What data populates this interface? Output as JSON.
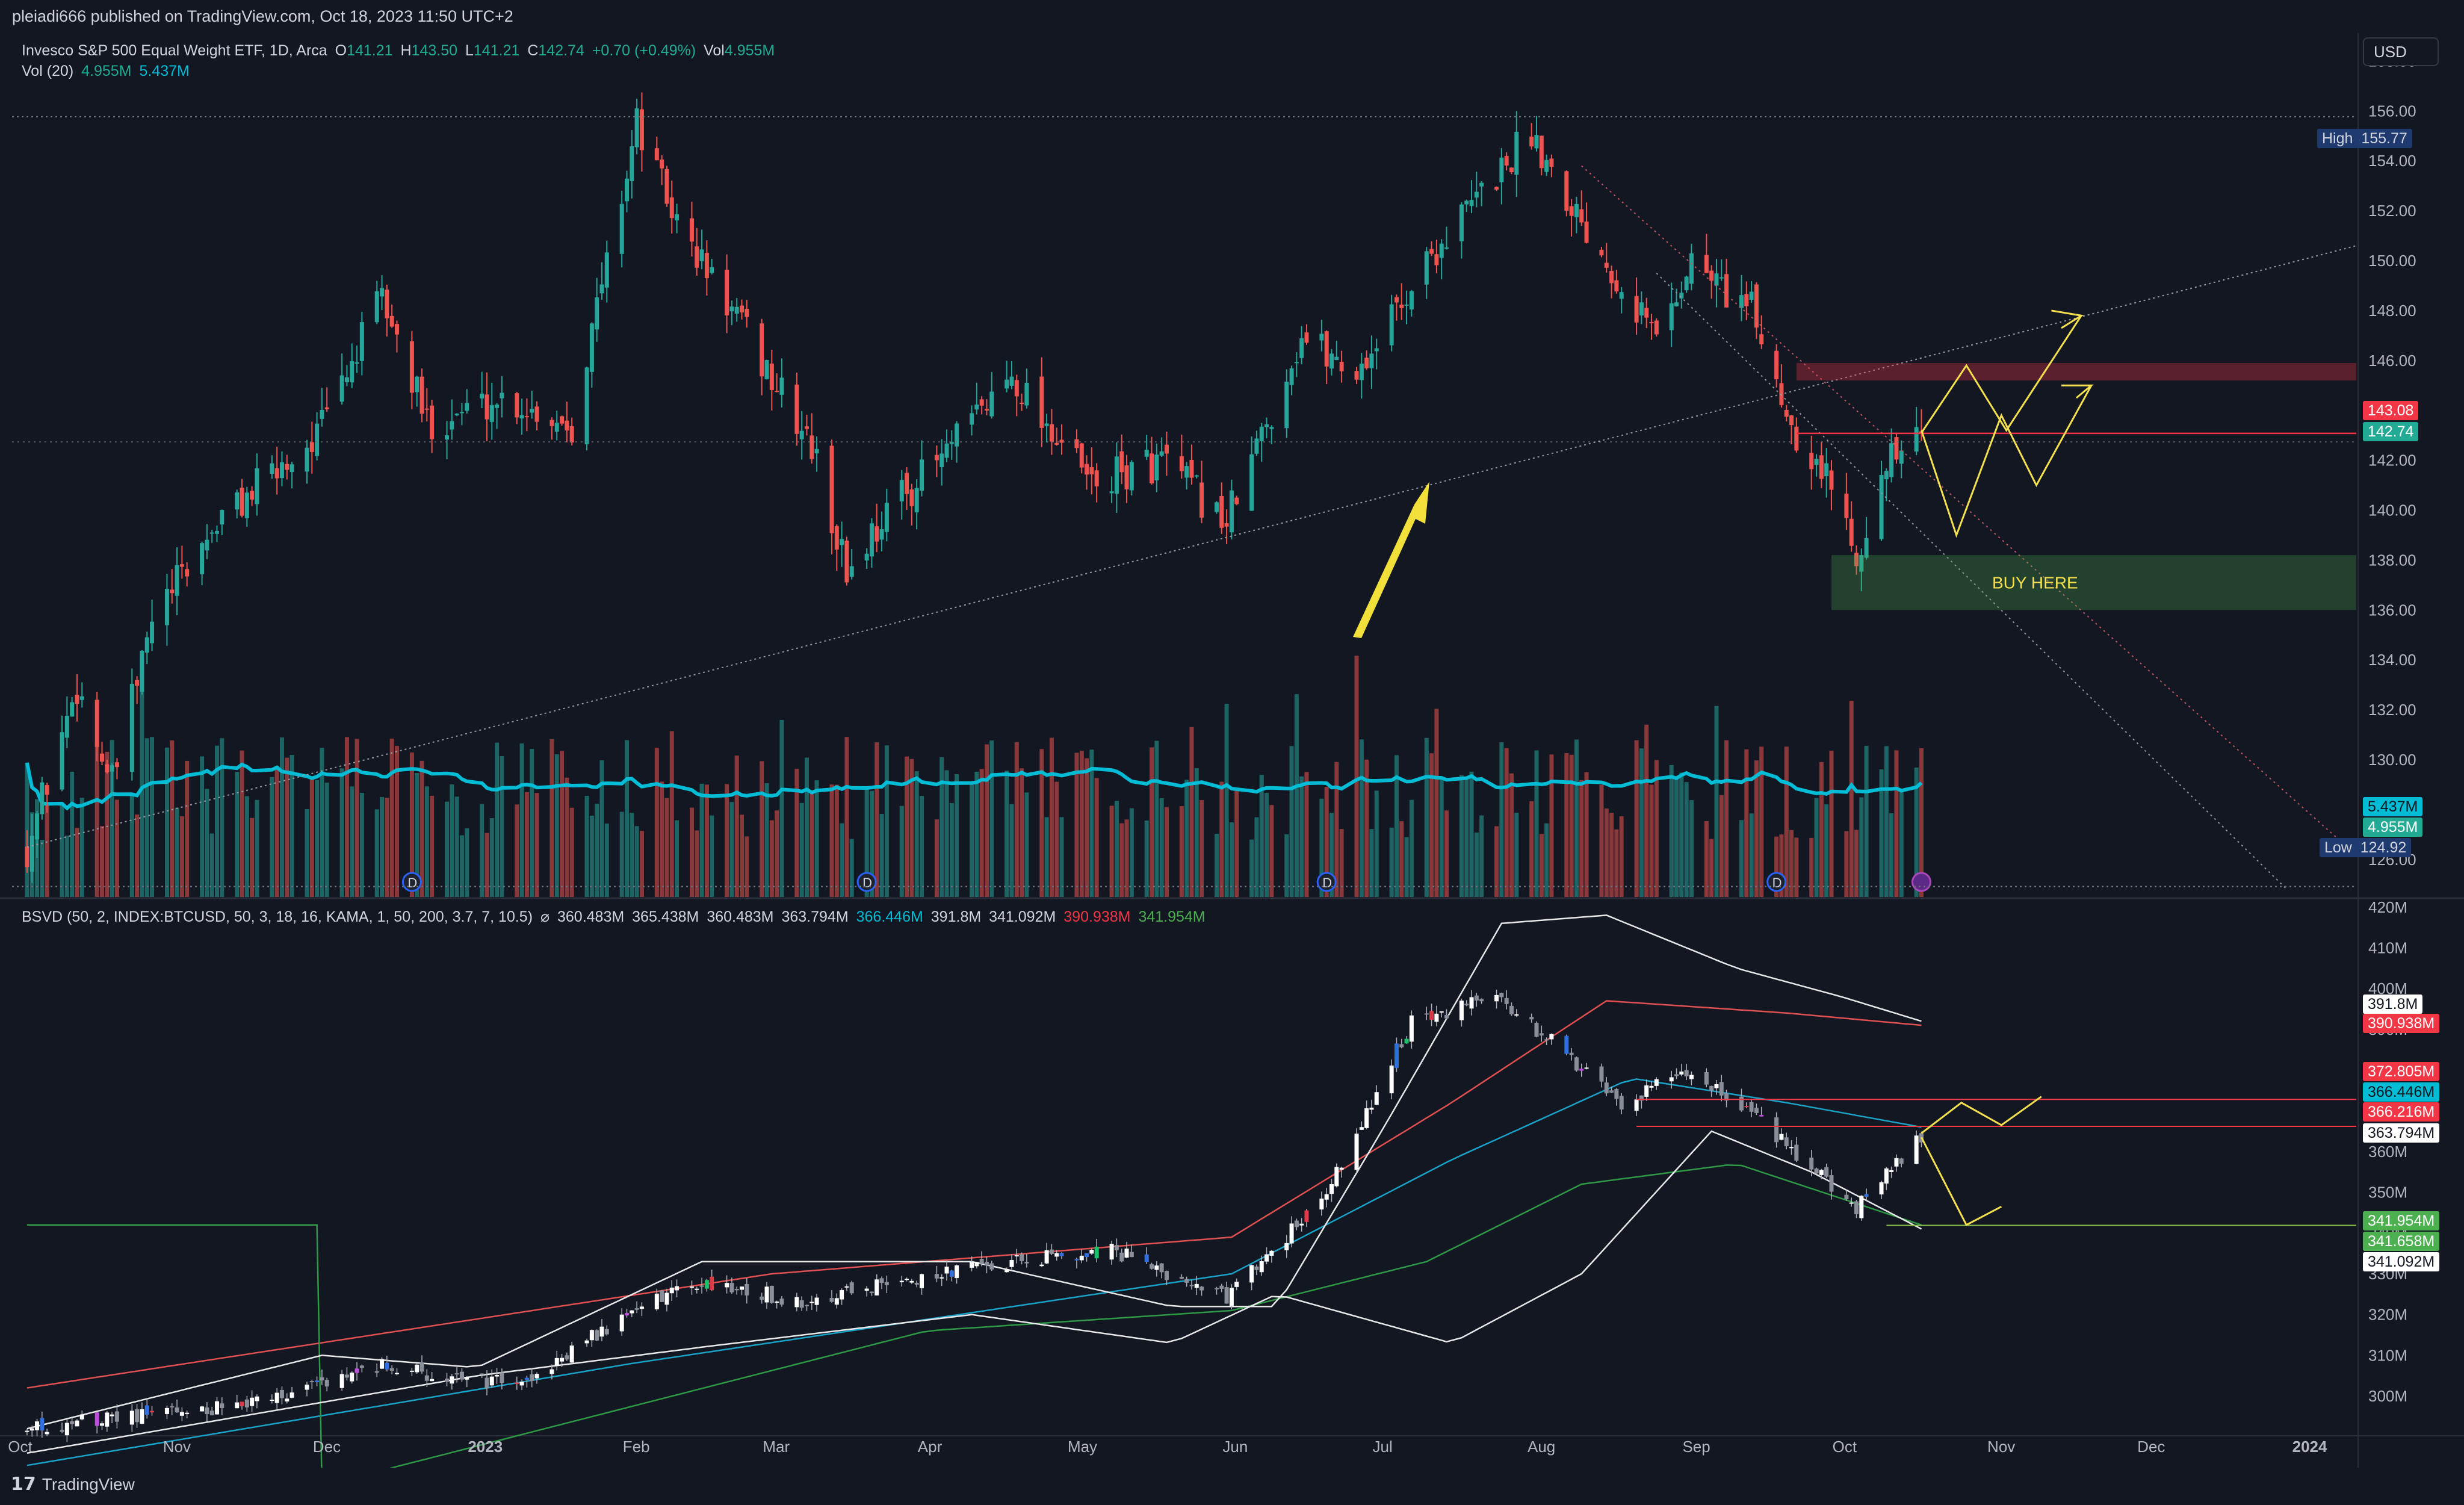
{
  "header": {
    "published_by": "pleiadi666 published on TradingView.com, Oct 18, 2023 11:50 UTC+2"
  },
  "price_legend": {
    "symbol": "Invesco S&P 500 Equal Weight ETF, 1D, Arca",
    "open_label": "O",
    "open": "141.21",
    "high_label": "H",
    "high": "143.50",
    "low_label": "L",
    "low": "141.21",
    "close_label": "C",
    "close": "142.74",
    "change": "+0.70 (+0.49%)",
    "vol_label": "Vol",
    "vol": "4.955M",
    "vol_ma_label": "Vol (20)",
    "vol_ma_1": "4.955M",
    "vol_ma_2": "5.437M"
  },
  "indicator_legend": {
    "name": "BSVD (50, 2, INDEX:BTCUSD, 50, 3, 18, 16, KAMA, 1, 50, 200, 3.7, 7, 10.5)",
    "symbol": "⌀",
    "v1": "360.483M",
    "v2": "365.438M",
    "v3": "360.483M",
    "v4": "363.794M",
    "v5": "366.446M",
    "v6": "391.8M",
    "v7": "341.092M",
    "v8": "390.938M",
    "v9": "341.954M"
  },
  "currency_button": "USD",
  "annotations": {
    "buy_here": "BUY HERE",
    "high_label": "High",
    "high_value": "155.77",
    "low_label": "Low",
    "low_value": "124.92"
  },
  "price_axis_tags": [
    {
      "text": "143.08",
      "color": "#f23645"
    },
    {
      "text": "142.74",
      "color": "#22ab94"
    },
    {
      "text": "5.437M",
      "color": "#00bcd4"
    },
    {
      "text": "4.955M",
      "color": "#22ab94"
    }
  ],
  "indicator_axis_tags": [
    {
      "text": "391.8M",
      "bg": "#ffffff",
      "fg": "#131722"
    },
    {
      "text": "390.938M",
      "bg": "#f23645",
      "fg": "#ffffff"
    },
    {
      "text": "372.805M",
      "bg": "#f23645",
      "fg": "#ffffff"
    },
    {
      "text": "366.446M",
      "bg": "#00bcd4",
      "fg": "#131722"
    },
    {
      "text": "366.216M",
      "bg": "#f23645",
      "fg": "#ffffff"
    },
    {
      "text": "363.794M",
      "bg": "#ffffff",
      "fg": "#131722"
    },
    {
      "text": "341.954M",
      "bg": "#4caf50",
      "fg": "#ffffff"
    },
    {
      "text": "341.658M",
      "bg": "#4caf50",
      "fg": "#ffffff"
    },
    {
      "text": "341.092M",
      "bg": "#ffffff",
      "fg": "#131722"
    }
  ],
  "footer": {
    "brand": "TradingView"
  },
  "colors": {
    "background": "#131722",
    "up": "#26a69a",
    "down": "#ef5350",
    "vol_ma": "#00bcd4",
    "annotation": "#f5e050",
    "grid": "#1e222d"
  },
  "chart_data": [
    {
      "type": "candlestick",
      "title": "Invesco S&P 500 Equal Weight ETF, 1D, Arca",
      "x_ticks": [
        "Oct",
        "Nov",
        "Dec",
        "2023",
        "Feb",
        "Mar",
        "Apr",
        "May",
        "Jun",
        "Jul",
        "Aug",
        "Sep",
        "Oct",
        "Nov",
        "Dec",
        "2024"
      ],
      "y_ticks": [
        158,
        156,
        154,
        152,
        150,
        148,
        146,
        144,
        142,
        140,
        138,
        136,
        134,
        132,
        130,
        128,
        126
      ],
      "ylim": [
        124.5,
        159
      ],
      "grid": false,
      "close_path": [
        [
          "2022-10-03",
          126.5
        ],
        [
          "2022-10-13",
          133.0
        ],
        [
          "2022-10-20",
          129.0
        ],
        [
          "2022-10-28",
          135.5
        ],
        [
          "2022-11-10",
          139.5
        ],
        [
          "2022-11-30",
          143.0
        ],
        [
          "2022-12-13",
          148.5
        ],
        [
          "2022-12-22",
          143.5
        ],
        [
          "2023-01-06",
          144.5
        ],
        [
          "2023-01-20",
          143.5
        ],
        [
          "2023-02-02",
          155.5
        ],
        [
          "2023-02-10",
          151.5
        ],
        [
          "2023-02-24",
          147.0
        ],
        [
          "2023-03-09",
          142.5
        ],
        [
          "2023-03-16",
          137.5
        ],
        [
          "2023-03-24",
          140.0
        ],
        [
          "2023-04-06",
          142.5
        ],
        [
          "2023-04-18",
          145.5
        ],
        [
          "2023-05-04",
          141.0
        ],
        [
          "2023-05-18",
          142.0
        ],
        [
          "2023-05-31",
          139.5
        ],
        [
          "2023-06-15",
          147.0
        ],
        [
          "2023-06-26",
          145.5
        ],
        [
          "2023-07-10",
          150.0
        ],
        [
          "2023-07-31",
          155.2
        ],
        [
          "2023-08-09",
          152.0
        ],
        [
          "2023-08-25",
          147.0
        ],
        [
          "2023-09-01",
          150.0
        ],
        [
          "2023-09-13",
          148.0
        ],
        [
          "2023-09-21",
          143.5
        ],
        [
          "2023-09-29",
          141.0
        ],
        [
          "2023-10-04",
          138.5
        ],
        [
          "2023-10-11",
          142.0
        ],
        [
          "2023-10-17",
          142.74
        ]
      ],
      "high": 155.77,
      "low": 124.92,
      "last_close": 142.74,
      "resistance": 143.08
    },
    {
      "type": "bar",
      "title": "Vol (20)",
      "series": [
        {
          "name": "Vol",
          "last": "4.955M"
        },
        {
          "name": "Vol MA",
          "last": "5.437M"
        }
      ]
    },
    {
      "type": "candlestick",
      "title": "BSVD (50, 2, INDEX:BTCUSD, 50, 3, 18, 16, KAMA, 1, 50, 200, 3.7, 7, 10.5)",
      "y_ticks": [
        420,
        410,
        400,
        390,
        380,
        370,
        360,
        350,
        340,
        330,
        320,
        310,
        300
      ],
      "ylim": [
        291,
        421
      ],
      "close_path": [
        [
          "2022-10-03",
          292
        ],
        [
          "2022-11-15",
          298
        ],
        [
          "2022-12-13",
          308
        ],
        [
          "2022-12-28",
          304
        ],
        [
          "2023-01-10",
          303
        ],
        [
          "2023-01-31",
          320
        ],
        [
          "2023-02-15",
          328
        ],
        [
          "2023-03-09",
          323
        ],
        [
          "2023-04-06",
          331
        ],
        [
          "2023-05-08",
          336
        ],
        [
          "2023-05-31",
          324
        ],
        [
          "2023-06-19",
          348
        ],
        [
          "2023-07-07",
          392
        ],
        [
          "2023-07-24",
          398
        ],
        [
          "2023-08-04",
          387
        ],
        [
          "2023-08-18",
          372
        ],
        [
          "2023-09-01",
          380
        ],
        [
          "2023-09-20",
          362
        ],
        [
          "2023-10-04",
          346
        ],
        [
          "2023-10-17",
          363.794
        ]
      ],
      "levels": [
        "391.8M",
        "390.938M",
        "372.805M",
        "366.446M",
        "366.216M",
        "363.794M",
        "341.954M",
        "341.658M",
        "341.092M"
      ]
    }
  ]
}
